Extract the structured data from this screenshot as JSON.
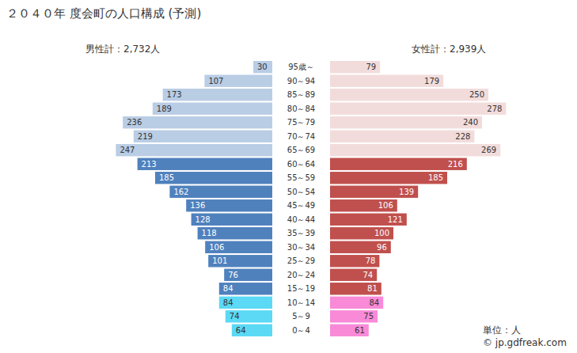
{
  "chart_data": {
    "type": "bar",
    "orientation": "horizontal",
    "title": "２０４０年 度会町の人口構成 (予測)",
    "annotations": [
      "男性計：2,732人",
      "女性計：2,939人",
      "単位：人",
      "© jp.gdfreak.com"
    ],
    "categories": [
      "95歳～",
      "90～94",
      "85～89",
      "80～84",
      "75～79",
      "70～74",
      "65～69",
      "60～64",
      "55～59",
      "50～54",
      "45～49",
      "40～44",
      "35～39",
      "30～34",
      "25～29",
      "20～24",
      "15～19",
      "10～14",
      "5～9",
      "0～4"
    ],
    "xlim": [
      0,
      280
    ],
    "data_labels": true,
    "tick_labels": "y",
    "series": [
      {
        "values": [
          30,
          107,
          173,
          189,
          236,
          219,
          247,
          213,
          185,
          162,
          136,
          128,
          118,
          106,
          101,
          76,
          84,
          84,
          74,
          64
        ],
        "colors": [
          "#b9cde5",
          "#b9cde5",
          "#b9cde5",
          "#b9cde5",
          "#b9cde5",
          "#b9cde5",
          "#b9cde5",
          "#4f81bd",
          "#4f81bd",
          "#4f81bd",
          "#4f81bd",
          "#4f81bd",
          "#4f81bd",
          "#4f81bd",
          "#4f81bd",
          "#4f81bd",
          "#4f81bd",
          "#5bd9f5",
          "#5bd9f5",
          "#5bd9f5"
        ]
      },
      {
        "values": [
          79,
          179,
          250,
          278,
          240,
          228,
          269,
          216,
          185,
          139,
          106,
          121,
          100,
          96,
          78,
          74,
          81,
          84,
          75,
          61
        ],
        "colors": [
          "#f2dcdb",
          "#f2dcdb",
          "#f2dcdb",
          "#f2dcdb",
          "#f2dcdb",
          "#f2dcdb",
          "#f2dcdb",
          "#c0504d",
          "#c0504d",
          "#c0504d",
          "#c0504d",
          "#c0504d",
          "#c0504d",
          "#c0504d",
          "#c0504d",
          "#c0504d",
          "#c0504d",
          "#f98ad8",
          "#f98ad8",
          "#f98ad8"
        ]
      }
    ]
  }
}
